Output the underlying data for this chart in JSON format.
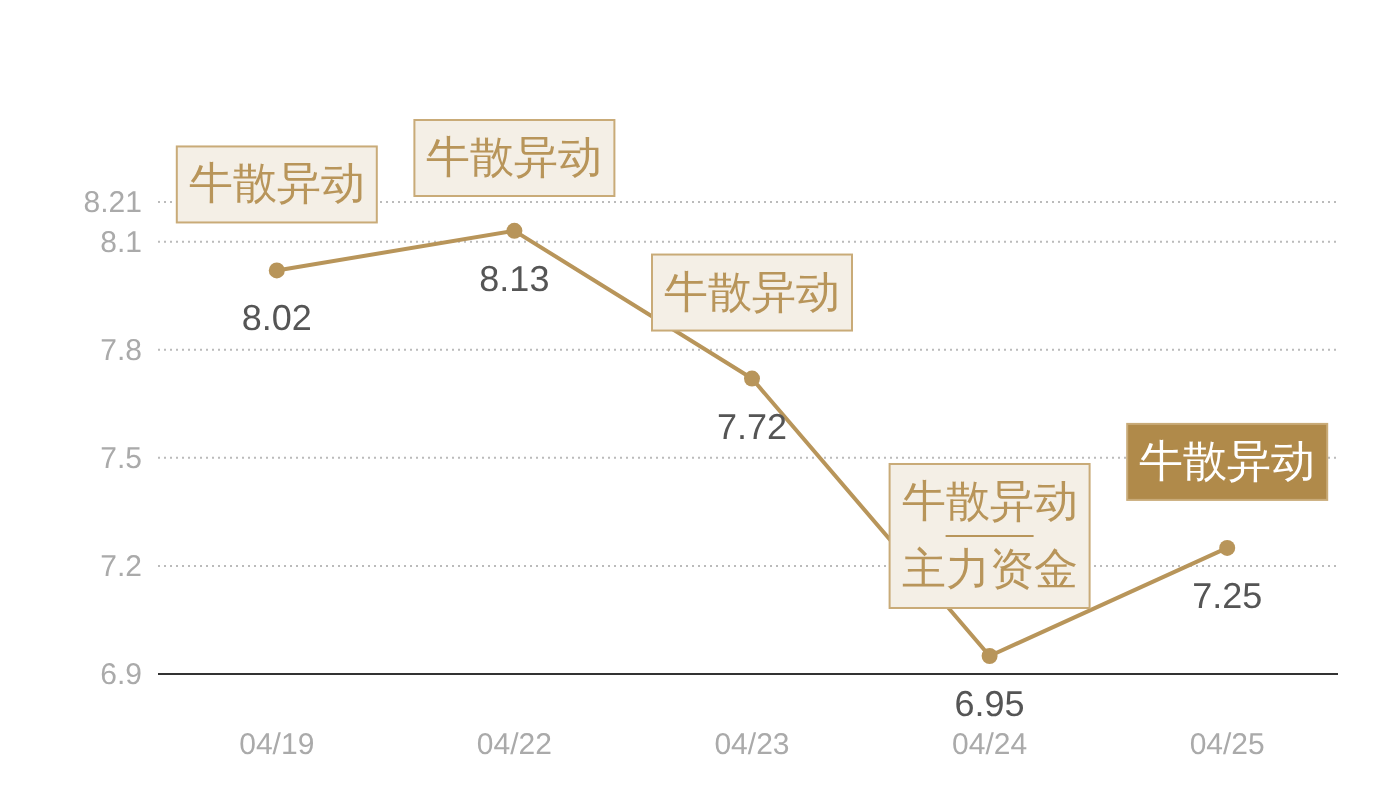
{
  "chart_data": {
    "type": "line",
    "categories": [
      "04/19",
      "04/22",
      "04/23",
      "04/24",
      "04/25"
    ],
    "series": [
      {
        "color": "#b8955a",
        "values": [
          8.02,
          8.13,
          7.72,
          6.95,
          7.25
        ]
      }
    ],
    "data_labels": true,
    "marker": "circle",
    "line_style": "solid",
    "ylim": [
      6.9,
      8.21
    ],
    "yticks": [
      6.9,
      7.2,
      7.5,
      7.8,
      8.1,
      8.21
    ],
    "grid": "y",
    "annotations": [
      {
        "text": "牛散异动",
        "x": "04/19",
        "y": 8.02
      },
      {
        "text": "牛散异动",
        "x": "04/22",
        "y": 8.13
      },
      {
        "text": "牛散异动",
        "x": "04/23",
        "y": 7.72
      },
      {
        "text": "牛散异动",
        "x": "04/24",
        "y": 6.95
      },
      {
        "text": "主力资金",
        "x": "04/24",
        "y": 6.95
      },
      {
        "text": "牛散异动",
        "x": "04/25",
        "y": 7.25
      }
    ]
  }
}
